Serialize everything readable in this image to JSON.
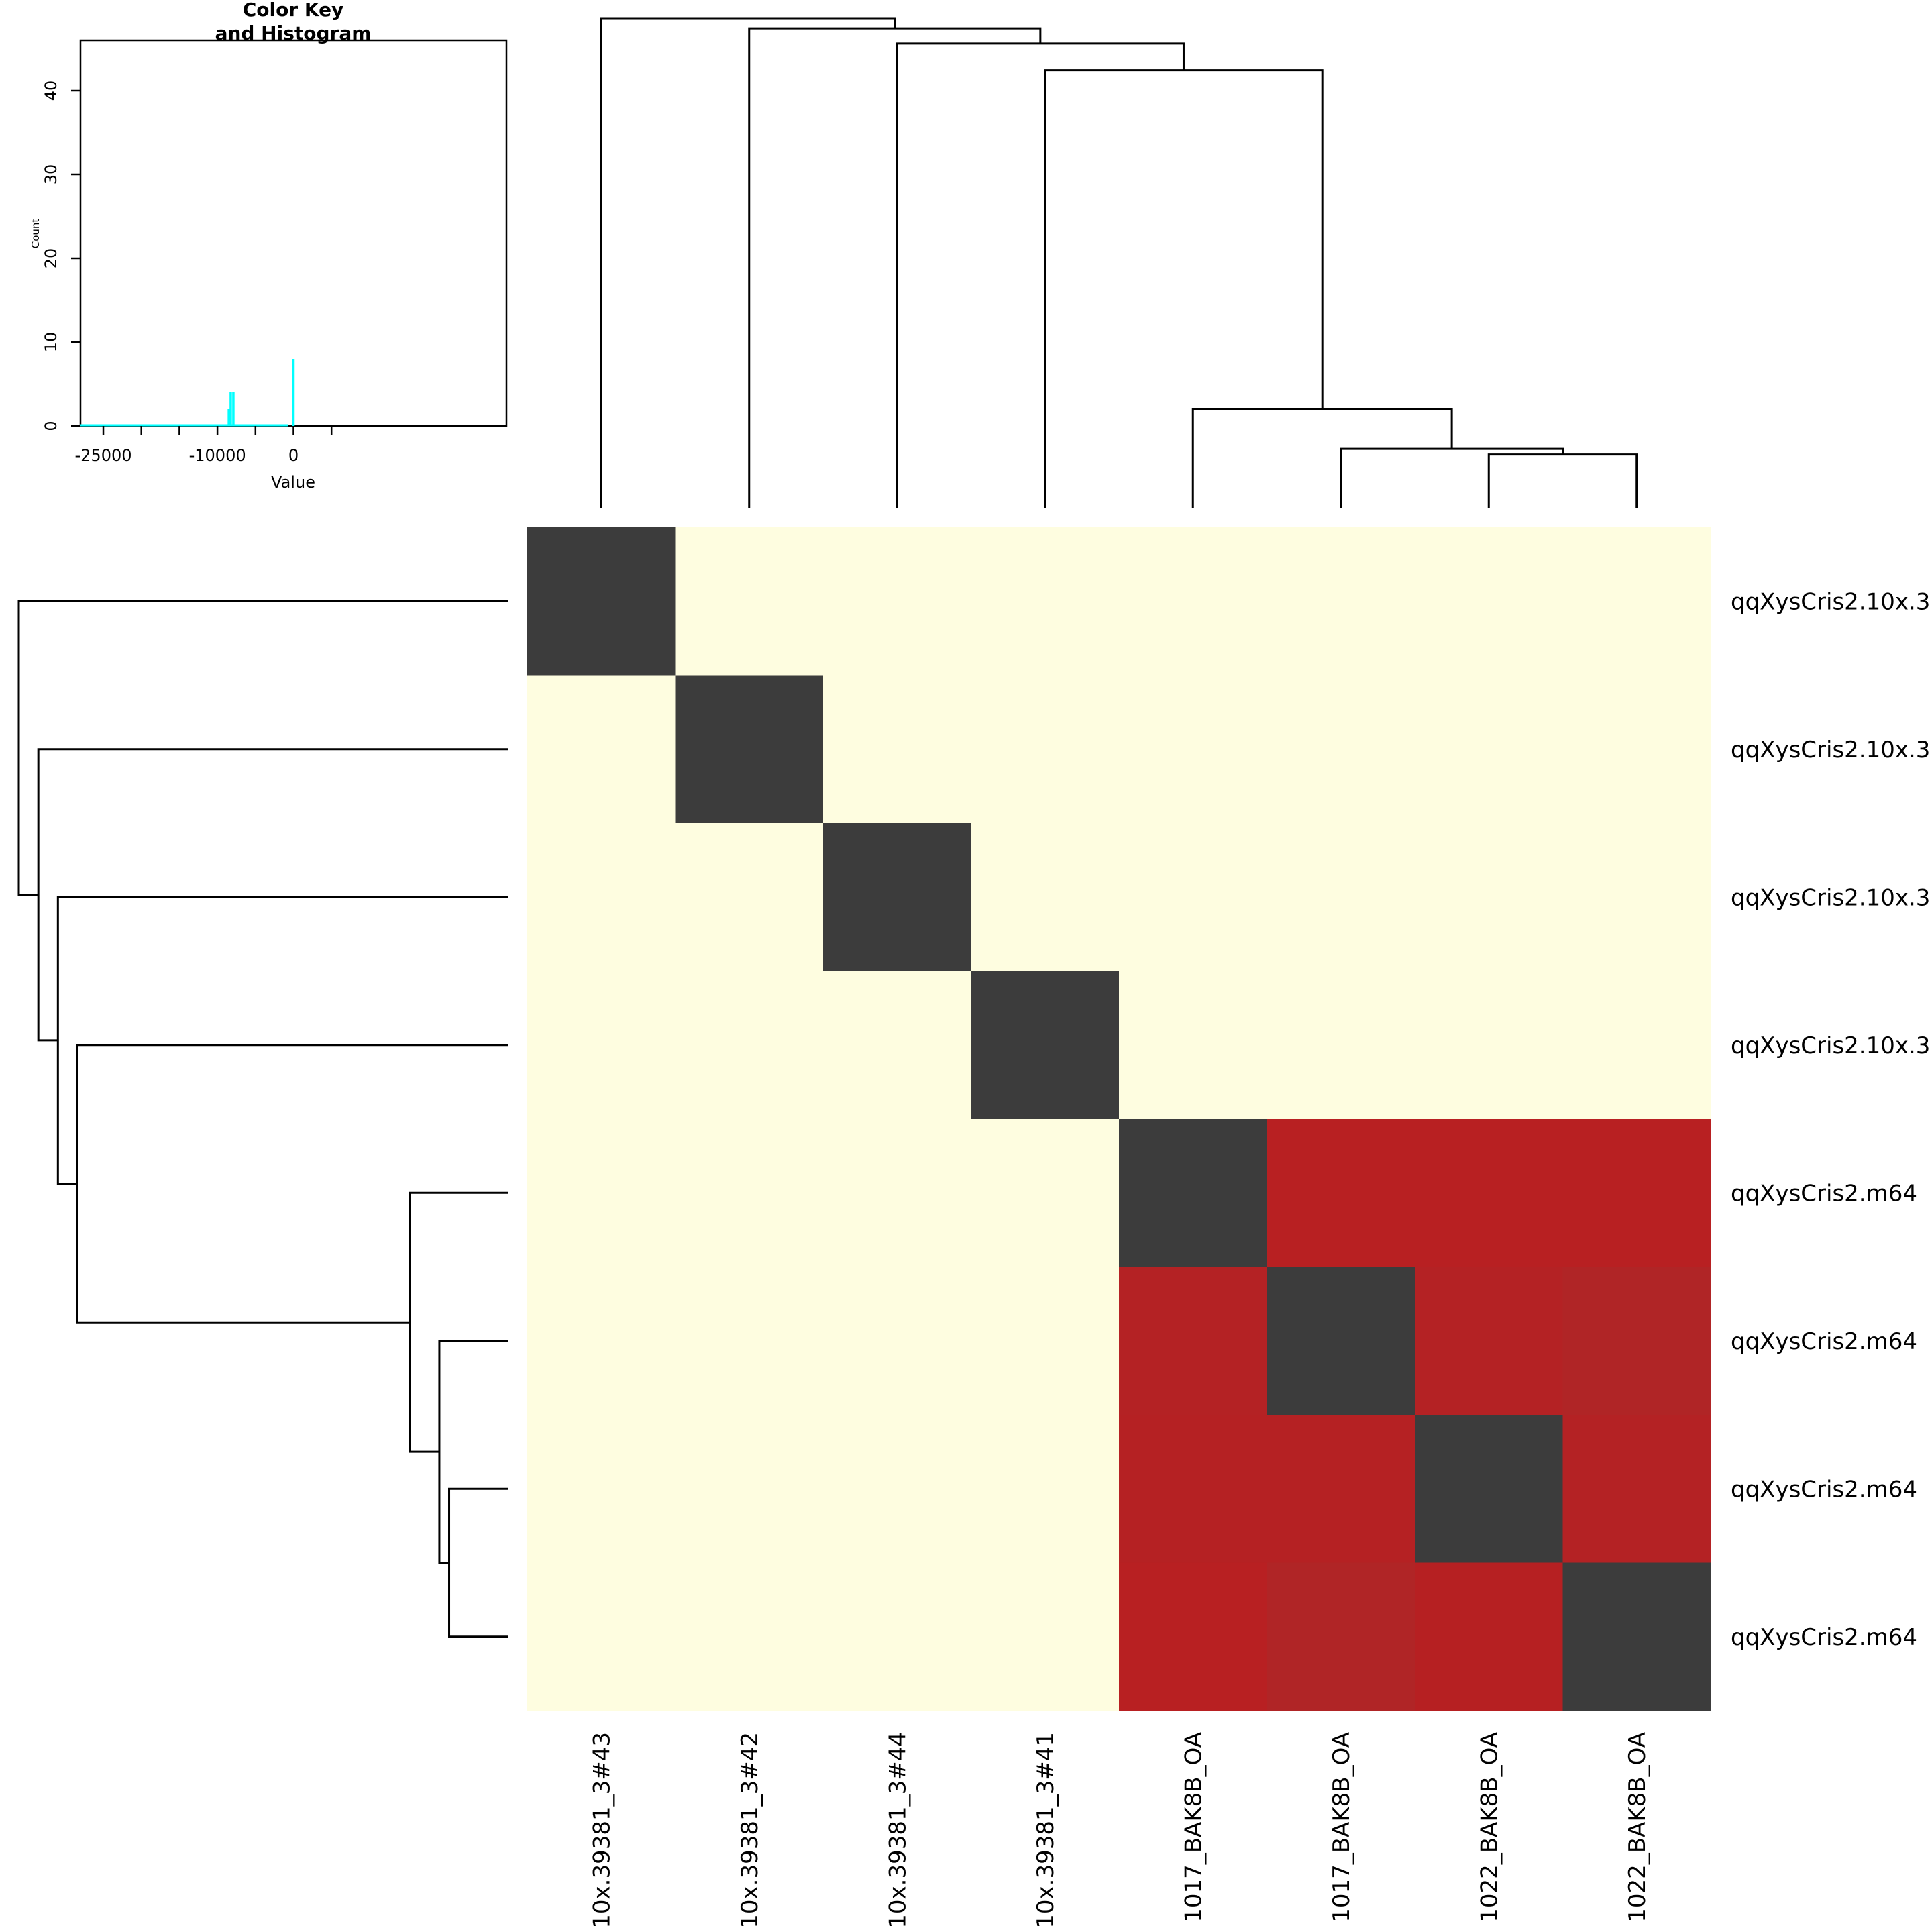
{
  "chart_data": {
    "type": "heatmap",
    "row_labels": [
      "qqXysCris2.10x.3",
      "qqXysCris2.10x.3",
      "qqXysCris2.10x.3",
      "qqXysCris2.10x.3",
      "qqXysCris2.m64",
      "qqXysCris2.m64",
      "qqXysCris2.m64",
      "qqXysCris2.m64"
    ],
    "col_labels": [
      "10x.39381_3#43",
      "10x.39381_3#42",
      "10x.39381_3#44",
      "10x.39381_3#41",
      "1017_BAK8B_OA",
      "1017_BAK8B_OA",
      "1022_BAK8B_OA",
      "1022_BAK8B_OA"
    ],
    "values": [
      [
        0,
        -8000,
        -8000,
        -8000,
        -8000,
        -8000,
        -8000,
        -8000
      ],
      [
        -8000,
        0,
        -8000,
        -8000,
        -8000,
        -8000,
        -8000,
        -8000
      ],
      [
        -8000,
        -8000,
        0,
        -8000,
        -8000,
        -8000,
        -8000,
        -8000
      ],
      [
        -8000,
        -8000,
        -8000,
        0,
        -8000,
        -8000,
        -8000,
        -8000
      ],
      [
        -8000,
        -8000,
        -8000,
        -8000,
        0,
        -300,
        -300,
        -300
      ],
      [
        -8000,
        -8000,
        -8000,
        -8000,
        -300,
        0,
        -300,
        -330
      ],
      [
        -8000,
        -8000,
        -8000,
        -8000,
        -300,
        -300,
        0,
        -310
      ],
      [
        -8000,
        -8000,
        -8000,
        -8000,
        -300,
        -330,
        -300,
        0
      ]
    ],
    "cell_colors": [
      [
        "#3c3c3c",
        "#fefde0",
        "#fefde0",
        "#fefde0",
        "#fefde0",
        "#fefde0",
        "#fefde0",
        "#fefde0"
      ],
      [
        "#fefde0",
        "#3c3c3c",
        "#fefde0",
        "#fefde0",
        "#fefde0",
        "#fefde0",
        "#fefde0",
        "#fefde0"
      ],
      [
        "#fefde0",
        "#fefde0",
        "#3c3c3c",
        "#fefde0",
        "#fefde0",
        "#fefde0",
        "#fefde0",
        "#fefde0"
      ],
      [
        "#fefde0",
        "#fefde0",
        "#fefde0",
        "#3c3c3c",
        "#fefde0",
        "#fefde0",
        "#fefde0",
        "#fefde0"
      ],
      [
        "#fefde0",
        "#fefde0",
        "#fefde0",
        "#fefde0",
        "#3c3c3c",
        "#b82022",
        "#b82022",
        "#b82022"
      ],
      [
        "#fefde0",
        "#fefde0",
        "#fefde0",
        "#fefde0",
        "#b42224",
        "#3c3c3c",
        "#b42224",
        "#b02526"
      ],
      [
        "#fefde0",
        "#fefde0",
        "#fefde0",
        "#fefde0",
        "#b52123",
        "#b52123",
        "#3c3c3c",
        "#b42224"
      ],
      [
        "#fefde0",
        "#fefde0",
        "#fefde0",
        "#fefde0",
        "#b82022",
        "#b02526",
        "#b62022",
        "#3c3c3c"
      ]
    ],
    "col_dendrogram": {
      "leaf_order": [
        0,
        1,
        2,
        3,
        4,
        5,
        6,
        7
      ],
      "merges": [
        {
          "left": 6,
          "right": 7,
          "height": 1.4
        },
        {
          "left": 5,
          "right": "m0",
          "height": 1.55
        },
        {
          "left": 4,
          "right": "m1",
          "height": 2.6
        },
        {
          "left": 3,
          "right": "m2",
          "height": 11.5
        },
        {
          "left": 2,
          "right": "m3",
          "height": 12.2
        },
        {
          "left": 1,
          "right": "m4",
          "height": 12.6
        },
        {
          "left": 0,
          "right": "m5",
          "height": 12.85
        }
      ]
    },
    "row_dendrogram": {
      "leaf_order": [
        0,
        1,
        2,
        3,
        4,
        5,
        6,
        7
      ],
      "merges": [
        {
          "left": 6,
          "right": 7,
          "height": 0.3
        },
        {
          "left": 5,
          "right": "m0",
          "height": 0.35
        },
        {
          "left": 4,
          "right": "m1",
          "height": 0.5
        },
        {
          "left": 3,
          "right": "m2",
          "height": 2.2
        },
        {
          "left": 2,
          "right": "m3",
          "height": 2.3
        },
        {
          "left": 1,
          "right": "m4",
          "height": 2.4
        },
        {
          "left": 0,
          "right": "m5",
          "height": 2.5
        }
      ]
    },
    "color_key": {
      "title": "Color Key\nand Histogram",
      "xlabel": "Value",
      "ylabel": "Count",
      "x_ticks": [
        -25000,
        -20000,
        -15000,
        -10000,
        -5000,
        0,
        5000
      ],
      "x_tick_labels": [
        "-25000",
        "-10000",
        "0"
      ],
      "x_tick_label_values": [
        -25000,
        -10000,
        0
      ],
      "xlim": [
        -28000,
        28000
      ],
      "y_ticks": [
        0,
        10,
        20,
        30,
        40
      ],
      "ylim": [
        0,
        46
      ],
      "histogram_color": "#00ffff",
      "histogram": [
        {
          "x": -8500,
          "count": 2
        },
        {
          "x": -8250,
          "count": 4
        },
        {
          "x": -7900,
          "count": 4
        },
        {
          "x": 0,
          "count": 8
        }
      ]
    }
  }
}
